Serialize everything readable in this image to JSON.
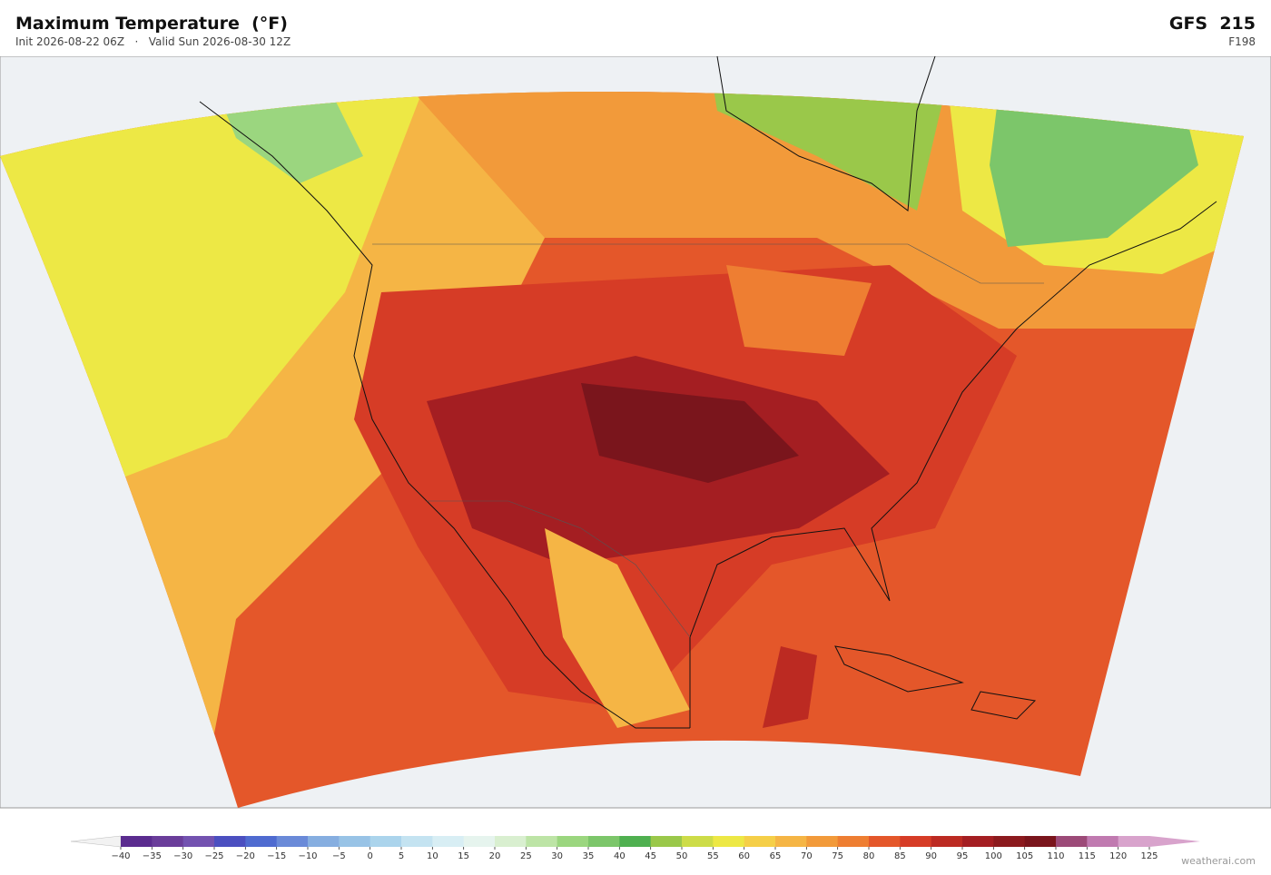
{
  "header": {
    "title": "Maximum Temperature  (°F)",
    "subtitle": "Init 2026-08-22 06Z   ·   Valid Sun 2026-08-30 12Z",
    "model": "GFS  215",
    "forecast_hour": "F198"
  },
  "colorbar": {
    "ticks": [
      {
        "value": -40,
        "label": "−40"
      },
      {
        "value": -35,
        "label": "−35"
      },
      {
        "value": -30,
        "label": "−30"
      },
      {
        "value": -25,
        "label": "−25"
      },
      {
        "value": -20,
        "label": "−20"
      },
      {
        "value": -15,
        "label": "−15"
      },
      {
        "value": -10,
        "label": "−10"
      },
      {
        "value": -5,
        "label": "−5"
      },
      0,
      5,
      10,
      15,
      20,
      25,
      30,
      35,
      40,
      45,
      50,
      55,
      60,
      65,
      70,
      75,
      80,
      85,
      90,
      95,
      100,
      105,
      110,
      115,
      120,
      125
    ],
    "colors": [
      "#5b2c8f",
      "#6a3d9a",
      "#7352b0",
      "#4b4fc0",
      "#4f6bd0",
      "#6a8ad8",
      "#86aee0",
      "#98c3e6",
      "#abd4ec",
      "#c4e3f1",
      "#d8eef4",
      "#e6f4ee",
      "#d9efd0",
      "#bde4a6",
      "#9bd67f",
      "#7cc66a",
      "#4fb050",
      "#9ac84a",
      "#cddc48",
      "#ede845",
      "#f5cf48",
      "#f5b545",
      "#f29a3a",
      "#ee7e32",
      "#e4572a",
      "#d63c26",
      "#bc2a22",
      "#a41e22",
      "#8c1a1e",
      "#7a151c",
      "#9c4a78",
      "#c07ab0",
      "#d8a3cc"
    ],
    "under_color": "#f2f2f2",
    "over_color": "#d8a3cc"
  },
  "footer": {
    "credit": "weatherai.com"
  }
}
